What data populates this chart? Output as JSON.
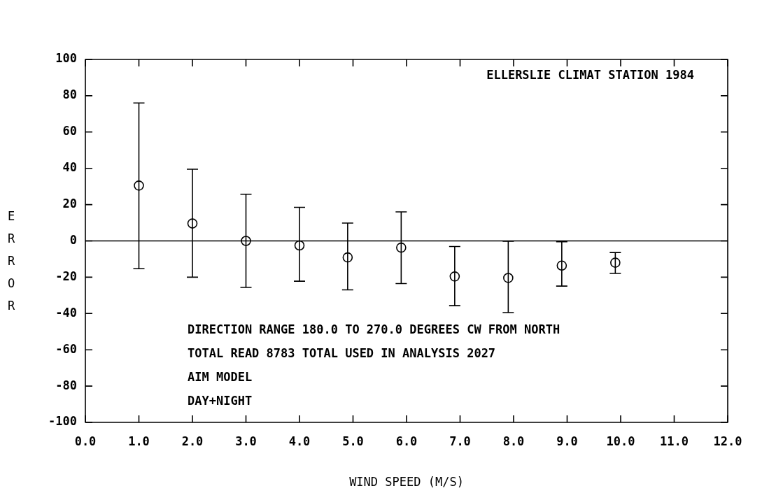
{
  "chart_data": {
    "type": "scatter",
    "title": "ELLERSLIE CLIMAT STATION 1984",
    "xlabel": "WIND SPEED (M/S)",
    "ylabel": "ERROR",
    "annotations": [
      "DIRECTION RANGE 180.0 TO 270.0 DEGREES CW FROM NORTH",
      "TOTAL READ 8783 TOTAL USED IN ANALYSIS 2027",
      "AIM MODEL",
      "DAY+NIGHT"
    ],
    "x": [
      1.0,
      2.0,
      3.0,
      4.0,
      4.9,
      5.9,
      6.9,
      7.9,
      8.9,
      9.9
    ],
    "series": [
      {
        "color": "#000000",
        "values": [
          30.5,
          9.6,
          0,
          -2.5,
          -9.1,
          -3.7,
          -19.6,
          -20.4,
          -13.6,
          -12
        ],
        "errors": [
          [
            -15.3,
            76
          ],
          [
            -20,
            39.5
          ],
          [
            -25.6,
            25.7
          ],
          [
            -22.2,
            18.5
          ],
          [
            -27,
            9.8
          ],
          [
            -23.5,
            16
          ],
          [
            -35.7,
            -3.1
          ],
          [
            -39.5,
            -0.2
          ],
          [
            -24.9,
            -0.5
          ],
          [
            -17.9,
            -6.4
          ]
        ]
      }
    ],
    "xlim": [
      0,
      12
    ],
    "xticks": [
      {
        "value": 0,
        "label": "0.0"
      },
      {
        "value": 1,
        "label": "1.0"
      },
      {
        "value": 2,
        "label": "2.0"
      },
      {
        "value": 3,
        "label": "3.0"
      },
      {
        "value": 4,
        "label": "4.0"
      },
      {
        "value": 5,
        "label": "5.0"
      },
      {
        "value": 6,
        "label": "6.0"
      },
      {
        "value": 7,
        "label": "7.0"
      },
      {
        "value": 8,
        "label": "8.0"
      },
      {
        "value": 9,
        "label": "9.0"
      },
      {
        "value": 10,
        "label": "10.0"
      },
      {
        "value": 11,
        "label": "11.0"
      },
      {
        "value": 12,
        "label": "12.0"
      }
    ],
    "ylim": [
      -100,
      100
    ],
    "yticks": [
      -100,
      -80,
      -60,
      -40,
      -20,
      0,
      20,
      40,
      60,
      80,
      100
    ],
    "ref_lines": [
      {
        "axis": "y",
        "value": 0,
        "color": "#000000"
      }
    ],
    "grid": false,
    "legend": false,
    "marker": "circle"
  }
}
